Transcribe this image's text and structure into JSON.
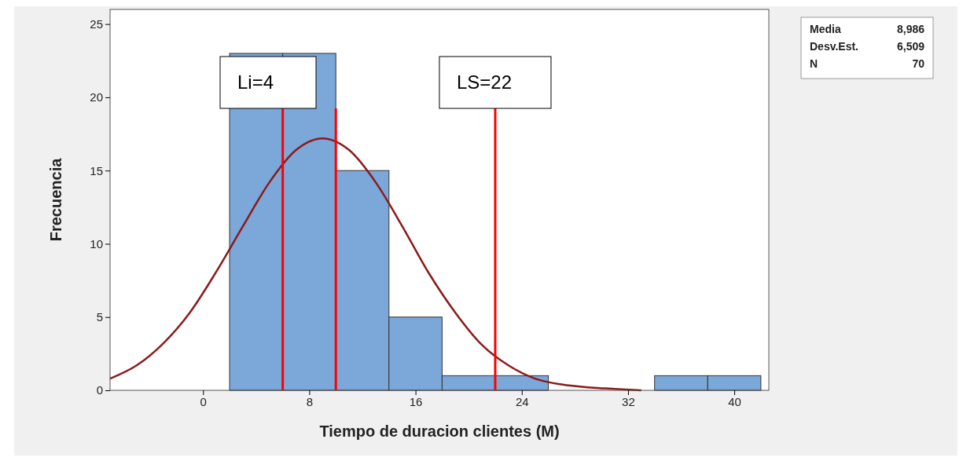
{
  "chart_data": {
    "type": "histogram",
    "xlabel": "Tiempo de duracion clientes (M)",
    "ylabel": "Frecuencia",
    "bins": [
      2,
      6,
      10,
      14,
      18,
      22,
      26,
      30,
      34,
      38,
      42
    ],
    "values": [
      23,
      23,
      15,
      5,
      1,
      1,
      0,
      0,
      1,
      1
    ],
    "color": "#7ba7d9",
    "series": [
      {
        "type": "line",
        "color": "#8b1a1a",
        "x": [
          -7,
          -5,
          -3,
          -1,
          1,
          3,
          5,
          7,
          9,
          11,
          13,
          15,
          17,
          19,
          21,
          23,
          25,
          27,
          29,
          31,
          33
        ],
        "values": [
          0.8,
          1.7,
          3.2,
          5.3,
          8.1,
          11.2,
          14.2,
          16.4,
          17.2,
          16.4,
          14.2,
          11.2,
          8,
          5.3,
          3.1,
          1.7,
          0.8,
          0.4,
          0.2,
          0.1,
          0
        ]
      }
    ],
    "xlim": [
      -7,
      42.6
    ],
    "xticks": [
      0,
      8,
      16,
      24,
      32,
      40
    ],
    "ylim": [
      0,
      26
    ],
    "yticks": [
      0,
      5,
      10,
      15,
      20,
      25
    ],
    "ref_lines": [
      {
        "axis": "x",
        "value": 6,
        "color": "#ff0000"
      },
      {
        "axis": "x",
        "value": 10,
        "color": "#ff0000"
      },
      {
        "axis": "x",
        "value": 22,
        "label": "LS=22",
        "color": "#ff0000"
      }
    ],
    "annotations": [
      "Media 8,986",
      "Desv.Est. 6,509",
      "N 70",
      "Li=4"
    ],
    "grid": false
  }
}
